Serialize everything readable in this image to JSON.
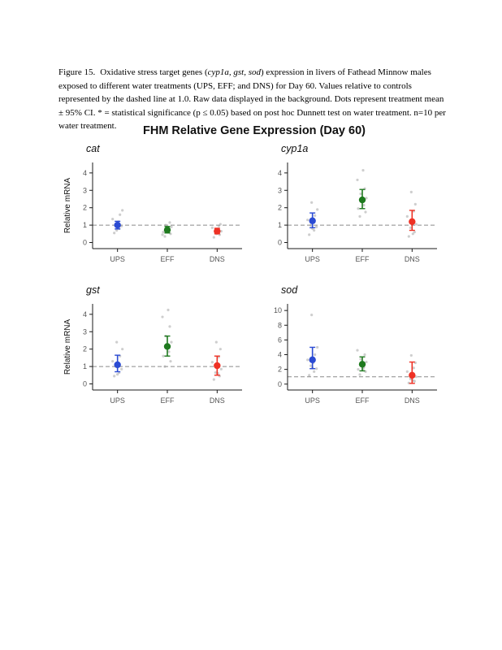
{
  "caption": {
    "label": "Figure 15.",
    "pre_genes": "Oxidative stress target genes (",
    "genes": "cyp1a, gst, sod",
    "post_genes": ") expression in livers of Fathead Minnow males exposed to different water treatments (UPS, EFF; and DNS) for Day 60. Values relative to controls represented by the dashed line at 1.0. Raw data displayed in the background. Dots represent treatment mean ± 95% CI. * = statistical significance (p ≤ 0.05) based on post hoc Dunnett test on water treatment. n=10 per water treatment."
  },
  "figure": {
    "title": "FHM Relative Gene Expression (Day 60)"
  },
  "colors": {
    "UPS": "#2b4bd3",
    "EFF": "#1f7a1f",
    "DNS": "#ee3124",
    "raw_points": "#9e9e9e",
    "reference_line": "#8a8a8a"
  },
  "chart_data": [
    {
      "type": "pointrange",
      "title": "cat",
      "categories": [
        "UPS",
        "EFF",
        "DNS"
      ],
      "ylabel": "Relative mRNA",
      "yticks": [
        0,
        1,
        2,
        3,
        4
      ],
      "ylim": [
        -0.35,
        4.6
      ],
      "ref_line": 1.0,
      "groups": [
        {
          "label": "UPS",
          "color": "#2b4bd3",
          "mean": 1.0,
          "ci": [
            0.78,
            1.22
          ],
          "raw": [
            [
              -4,
              0.55
            ],
            [
              2,
              0.8
            ],
            [
              5,
              0.95
            ],
            [
              -2,
              1.05
            ],
            [
              1,
              1.2
            ],
            [
              -6,
              1.35
            ],
            [
              3,
              1.6
            ],
            [
              6,
              1.85
            ],
            [
              -1,
              0.7
            ],
            [
              0,
              1.0
            ]
          ]
        },
        {
          "label": "EFF",
          "color": "#1f7a1f",
          "mean": 0.72,
          "ci": [
            0.55,
            0.92
          ],
          "raw": [
            [
              -3,
              0.35
            ],
            [
              4,
              0.5
            ],
            [
              -5,
              0.6
            ],
            [
              2,
              0.7
            ],
            [
              0,
              0.8
            ],
            [
              5,
              0.9
            ],
            [
              -2,
              1.0
            ],
            [
              3,
              1.15
            ],
            [
              -6,
              0.45
            ],
            [
              1,
              0.75
            ]
          ]
        },
        {
          "label": "DNS",
          "color": "#ee3124",
          "mean": 0.65,
          "ci": [
            0.5,
            0.82
          ],
          "raw": [
            [
              -4,
              0.3
            ],
            [
              3,
              0.45
            ],
            [
              -2,
              0.55
            ],
            [
              5,
              0.65
            ],
            [
              0,
              0.75
            ],
            [
              -6,
              0.85
            ],
            [
              2,
              0.95
            ],
            [
              4,
              1.05
            ],
            [
              -1,
              0.5
            ],
            [
              1,
              0.7
            ]
          ]
        }
      ]
    },
    {
      "type": "pointrange",
      "title": "cyp1a",
      "categories": [
        "UPS",
        "EFF",
        "DNS"
      ],
      "ylabel": "",
      "yticks": [
        0,
        1,
        2,
        3,
        4
      ],
      "ylim": [
        -0.35,
        4.6
      ],
      "ref_line": 1.0,
      "groups": [
        {
          "label": "UPS",
          "color": "#2b4bd3",
          "mean": 1.25,
          "ci": [
            0.85,
            1.7
          ],
          "raw": [
            [
              -4,
              0.45
            ],
            [
              2,
              0.7
            ],
            [
              5,
              0.9
            ],
            [
              -2,
              1.0
            ],
            [
              1,
              1.15
            ],
            [
              -6,
              1.3
            ],
            [
              3,
              1.55
            ],
            [
              6,
              1.9
            ],
            [
              -1,
              2.3
            ],
            [
              0,
              0.8
            ]
          ]
        },
        {
          "label": "EFF",
          "color": "#1f7a1f",
          "mean": 2.45,
          "ci": [
            1.95,
            3.05
          ],
          "raw": [
            [
              -3,
              1.5
            ],
            [
              4,
              1.75
            ],
            [
              -5,
              1.95
            ],
            [
              2,
              2.15
            ],
            [
              0,
              2.35
            ],
            [
              5,
              2.55
            ],
            [
              -2,
              2.8
            ],
            [
              3,
              3.1
            ],
            [
              -6,
              3.6
            ],
            [
              1,
              4.15
            ]
          ]
        },
        {
          "label": "DNS",
          "color": "#ee3124",
          "mean": 1.2,
          "ci": [
            0.7,
            1.85
          ],
          "raw": [
            [
              -4,
              0.35
            ],
            [
              3,
              0.6
            ],
            [
              -2,
              0.85
            ],
            [
              5,
              1.05
            ],
            [
              0,
              1.25
            ],
            [
              -6,
              1.5
            ],
            [
              2,
              1.8
            ],
            [
              4,
              2.2
            ],
            [
              -1,
              2.9
            ],
            [
              1,
              0.5
            ]
          ]
        }
      ]
    },
    {
      "type": "pointrange",
      "title": "gst",
      "categories": [
        "UPS",
        "EFF",
        "DNS"
      ],
      "ylabel": "Relative mRNA",
      "yticks": [
        0,
        1,
        2,
        3,
        4
      ],
      "ylim": [
        -0.35,
        4.6
      ],
      "ref_line": 1.0,
      "groups": [
        {
          "label": "UPS",
          "color": "#2b4bd3",
          "mean": 1.1,
          "ci": [
            0.7,
            1.65
          ],
          "raw": [
            [
              -4,
              0.45
            ],
            [
              2,
              0.65
            ],
            [
              5,
              0.85
            ],
            [
              -2,
              1.0
            ],
            [
              1,
              1.15
            ],
            [
              -6,
              1.3
            ],
            [
              3,
              1.6
            ],
            [
              6,
              2.0
            ],
            [
              -1,
              2.4
            ],
            [
              0,
              0.55
            ]
          ]
        },
        {
          "label": "EFF",
          "color": "#1f7a1f",
          "mean": 2.15,
          "ci": [
            1.6,
            2.75
          ],
          "raw": [
            [
              -3,
              1.0
            ],
            [
              4,
              1.3
            ],
            [
              -5,
              1.6
            ],
            [
              2,
              1.85
            ],
            [
              0,
              2.1
            ],
            [
              5,
              2.4
            ],
            [
              -2,
              2.75
            ],
            [
              3,
              3.3
            ],
            [
              -6,
              3.85
            ],
            [
              1,
              4.25
            ]
          ]
        },
        {
          "label": "DNS",
          "color": "#ee3124",
          "mean": 1.05,
          "ci": [
            0.5,
            1.6
          ],
          "raw": [
            [
              -4,
              0.25
            ],
            [
              3,
              0.45
            ],
            [
              -2,
              0.65
            ],
            [
              5,
              0.85
            ],
            [
              0,
              1.05
            ],
            [
              -6,
              1.25
            ],
            [
              2,
              1.55
            ],
            [
              4,
              2.0
            ],
            [
              -1,
              2.4
            ],
            [
              1,
              0.6
            ]
          ]
        }
      ]
    },
    {
      "type": "pointrange",
      "title": "sod",
      "categories": [
        "UPS",
        "EFF",
        "DNS"
      ],
      "ylabel": "",
      "yticks": [
        0,
        2,
        4,
        6,
        8,
        10
      ],
      "ylim": [
        -0.8,
        10.9
      ],
      "ref_line": 1.0,
      "groups": [
        {
          "label": "UPS",
          "color": "#2b4bd3",
          "mean": 3.3,
          "ci": [
            2.1,
            5.0
          ],
          "raw": [
            [
              -4,
              1.2
            ],
            [
              2,
              1.7
            ],
            [
              5,
              2.1
            ],
            [
              -2,
              2.5
            ],
            [
              1,
              2.9
            ],
            [
              -6,
              3.3
            ],
            [
              3,
              4.0
            ],
            [
              6,
              5.0
            ],
            [
              -1,
              9.4
            ],
            [
              0,
              2.2
            ]
          ]
        },
        {
          "label": "EFF",
          "color": "#1f7a1f",
          "mean": 2.7,
          "ci": [
            1.8,
            3.7
          ],
          "raw": [
            [
              -3,
              1.3
            ],
            [
              4,
              1.7
            ],
            [
              -5,
              2.0
            ],
            [
              2,
              2.3
            ],
            [
              0,
              2.6
            ],
            [
              5,
              3.0
            ],
            [
              -2,
              3.4
            ],
            [
              3,
              4.0
            ],
            [
              -6,
              4.6
            ],
            [
              1,
              2.1
            ]
          ]
        },
        {
          "label": "DNS",
          "color": "#ee3124",
          "mean": 1.2,
          "ci": [
            0.1,
            3.0
          ],
          "raw": [
            [
              -4,
              0.15
            ],
            [
              3,
              0.4
            ],
            [
              -2,
              0.7
            ],
            [
              5,
              1.0
            ],
            [
              0,
              1.3
            ],
            [
              -6,
              1.7
            ],
            [
              2,
              2.2
            ],
            [
              4,
              2.9
            ],
            [
              -1,
              3.9
            ],
            [
              1,
              0.5
            ]
          ]
        }
      ]
    }
  ]
}
